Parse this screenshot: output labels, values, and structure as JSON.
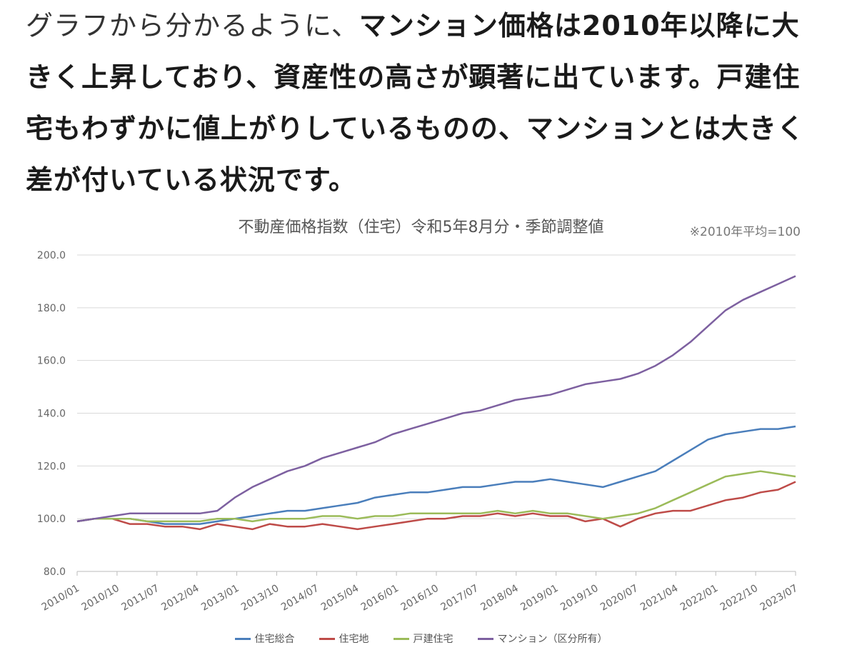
{
  "article": {
    "lead": "グラフから分かるように、",
    "strong": "マンション価格は2010年以降に大きく上昇しており、資産性の高さが顕著に出ています。戸建住宅もわずかに値上がりしているものの、マンションとは大きく差が付いている状況です。"
  },
  "chart_data": {
    "type": "line",
    "title": "不動産価格指数（住宅）令和5年8月分・季節調整値",
    "note": "※2010年平均=100",
    "ylim": [
      80,
      200
    ],
    "yticks": [
      "200.0",
      "180.0",
      "160.0",
      "140.0",
      "120.0",
      "100.0",
      "80.0"
    ],
    "yticks_values": [
      200,
      180,
      160,
      140,
      120,
      100,
      80
    ],
    "xticks": [
      "2010/01",
      "2010/10",
      "2011/07",
      "2012/04",
      "2013/01",
      "2013/10",
      "2014/07",
      "2015/04",
      "2016/01",
      "2016/10",
      "2017/07",
      "2018/04",
      "2019/01",
      "2019/10",
      "2020/07",
      "2021/04",
      "2022/01",
      "2022/10",
      "2023/07"
    ],
    "grid": true,
    "legend_position": "bottom",
    "series": [
      {
        "name": "住宅総合",
        "color": "#4a7ebb",
        "values": [
          99,
          100,
          100,
          100,
          99,
          98,
          98,
          98,
          99,
          100,
          101,
          102,
          103,
          103,
          104,
          105,
          106,
          108,
          109,
          110,
          110,
          111,
          112,
          112,
          113,
          114,
          114,
          115,
          114,
          113,
          112,
          114,
          116,
          118,
          122,
          126,
          130,
          132,
          133,
          134,
          134,
          135
        ]
      },
      {
        "name": "住宅地",
        "color": "#be4b48",
        "values": [
          99,
          100,
          100,
          98,
          98,
          97,
          97,
          96,
          98,
          97,
          96,
          98,
          97,
          97,
          98,
          97,
          96,
          97,
          98,
          99,
          100,
          100,
          101,
          101,
          102,
          101,
          102,
          101,
          101,
          99,
          100,
          97,
          100,
          102,
          103,
          103,
          105,
          107,
          108,
          110,
          111,
          114
        ]
      },
      {
        "name": "戸建住宅",
        "color": "#9bbb59",
        "values": [
          99,
          100,
          100,
          100,
          99,
          99,
          99,
          99,
          100,
          100,
          99,
          100,
          100,
          100,
          101,
          101,
          100,
          101,
          101,
          102,
          102,
          102,
          102,
          102,
          103,
          102,
          103,
          102,
          102,
          101,
          100,
          101,
          102,
          104,
          107,
          110,
          113,
          116,
          117,
          118,
          117,
          116
        ]
      },
      {
        "name": "マンション（区分所有）",
        "color": "#7d60a0",
        "values": [
          99,
          100,
          101,
          102,
          102,
          102,
          102,
          102,
          103,
          108,
          112,
          115,
          118,
          120,
          123,
          125,
          127,
          129,
          132,
          134,
          136,
          138,
          140,
          141,
          143,
          145,
          146,
          147,
          149,
          151,
          152,
          153,
          155,
          158,
          162,
          167,
          173,
          179,
          183,
          186,
          189,
          192
        ]
      }
    ]
  }
}
